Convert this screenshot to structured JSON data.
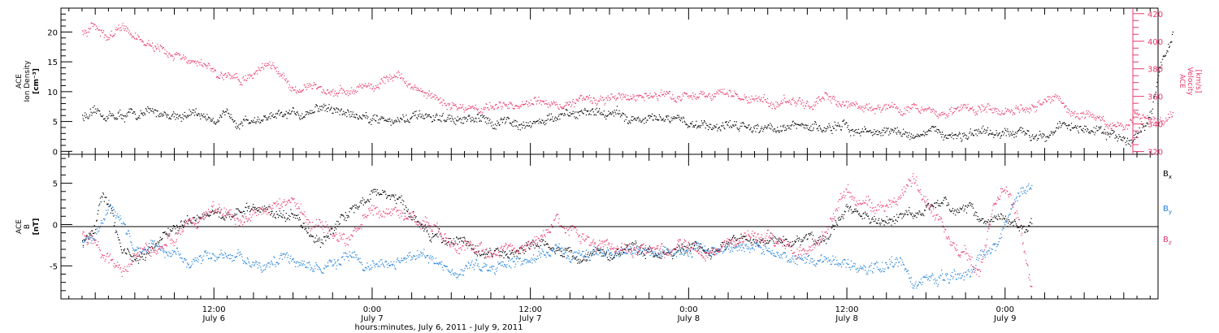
{
  "chart_data": [
    {
      "type": "scatter",
      "panel": "density-velocity",
      "ylabel_left": [
        "ACE",
        "Ion Density",
        "[cm⁻³]"
      ],
      "ylabel_right": [
        "ACE",
        "Velocity",
        "[km/s]"
      ],
      "ylim_left": [
        -0.5,
        24
      ],
      "ylim_right": [
        318,
        424
      ],
      "yticks_left": [
        0,
        5,
        10,
        15,
        20
      ],
      "yticks_right": [
        320,
        340,
        360,
        380,
        400,
        420
      ],
      "series": [
        {
          "axis": "left",
          "color": "#000000",
          "x": [
            0,
            3,
            6,
            9,
            12,
            15,
            18,
            21,
            24,
            27,
            30,
            33,
            36,
            39,
            42,
            45,
            48,
            51,
            54,
            57,
            60,
            63,
            66,
            69,
            72,
            75,
            78,
            79,
            80,
            81,
            82,
            82.7
          ],
          "y": [
            6,
            6,
            6.5,
            6,
            5.5,
            5.5,
            7.5,
            6,
            5.5,
            5.5,
            5,
            5,
            5.5,
            7,
            5.5,
            5,
            4.5,
            4.5,
            4,
            4,
            3.5,
            3,
            3,
            2.5,
            3,
            4.5,
            2.5,
            2,
            3,
            6,
            16,
            20
          ]
        },
        {
          "axis": "right",
          "color": "#e8386b",
          "x": [
            0,
            1,
            2,
            3,
            5,
            6,
            8,
            10,
            12,
            13,
            14,
            15,
            16,
            18,
            20,
            22,
            24,
            26,
            27,
            28,
            30,
            33,
            36,
            39,
            42,
            45,
            48,
            51,
            54,
            57,
            60,
            63,
            66,
            69,
            72,
            74,
            75,
            76,
            78,
            79,
            80,
            81,
            82,
            82.7
          ],
          "y": [
            405,
            410,
            402,
            410,
            397,
            392,
            385,
            378,
            371,
            378,
            385,
            376,
            368,
            365,
            364,
            368,
            375,
            361,
            358,
            353,
            352,
            354,
            356,
            358,
            360,
            361,
            362,
            358,
            356,
            356,
            352,
            352,
            349,
            352,
            351,
            360,
            347,
            349,
            340,
            338,
            348,
            342,
            341,
            346
          ]
        }
      ]
    },
    {
      "type": "scatter",
      "panel": "magnetic-field",
      "ylabel": [
        "ACE",
        "B",
        "[nT]"
      ],
      "ylim": [
        -9,
        8.5
      ],
      "yticks": [
        -5,
        0,
        5
      ],
      "xlabel": "hours:minutes, July  6, 2011 - July  9, 2011",
      "xtick_labels": [
        {
          "at": 10,
          "time": "12:00",
          "date": "July 6"
        },
        {
          "at": 22,
          "time": "0:00",
          "date": "July 7"
        },
        {
          "at": 34,
          "time": "12:00",
          "date": "July 7"
        },
        {
          "at": 46,
          "time": "0:00",
          "date": "July 8"
        },
        {
          "at": 58,
          "time": "12:00",
          "date": "July 8"
        },
        {
          "at": 70,
          "time": "0:00",
          "date": "July 9"
        }
      ],
      "xlim": [
        -1.6,
        81.6
      ],
      "legend": [
        "B",
        "B",
        "B"
      ],
      "legend_sub": [
        "x",
        "y",
        "z"
      ],
      "series": [
        {
          "name": "Bx",
          "color": "#000000",
          "x": [
            0,
            1,
            1.5,
            2,
            3,
            4,
            6,
            8,
            10,
            12,
            14,
            16,
            18,
            20,
            22,
            24,
            26,
            28,
            30,
            32,
            34,
            36,
            38,
            40,
            42,
            44,
            46,
            48,
            50,
            52,
            54,
            56,
            58,
            60,
            62,
            64,
            66,
            68,
            70,
            71,
            72
          ],
          "y": [
            -2,
            0,
            4,
            2,
            -3,
            -4,
            -2,
            1,
            2,
            1.5,
            2,
            1,
            -2,
            1,
            4,
            2.5,
            -1,
            -2,
            -3,
            -4,
            -2,
            -3,
            -4,
            -3,
            -3,
            -3,
            -2.5,
            -3,
            -2,
            -2,
            -2,
            -2,
            2,
            0,
            1,
            2,
            2,
            1,
            1,
            0,
            0
          ]
        },
        {
          "name": "By",
          "color": "#1e7fd9",
          "x": [
            0,
            1,
            2,
            3,
            4,
            6,
            8,
            10,
            12,
            14,
            16,
            18,
            20,
            22,
            24,
            26,
            28,
            30,
            32,
            34,
            36,
            38,
            40,
            42,
            44,
            46,
            48,
            50,
            52,
            54,
            56,
            58,
            60,
            62,
            63,
            64,
            66,
            67,
            68,
            69,
            70,
            71,
            72
          ],
          "y": [
            -2,
            -1,
            2,
            0,
            -3,
            -3,
            -4,
            -4,
            -4,
            -5,
            -4,
            -5,
            -4,
            -5,
            -4,
            -4,
            -5,
            -5,
            -5,
            -4,
            -3,
            -4,
            -3,
            -3,
            -3,
            -3,
            -3,
            -3,
            -3,
            -4,
            -4,
            -5,
            -5,
            -4,
            -7,
            -7,
            -7,
            -6,
            -4,
            -3,
            0,
            4,
            5
          ]
        },
        {
          "name": "Bz",
          "color": "#e8386b",
          "x": [
            0,
            1,
            2,
            3,
            4,
            6,
            8,
            10,
            12,
            14,
            16,
            18,
            20,
            22,
            24,
            26,
            28,
            30,
            32,
            34,
            36,
            38,
            40,
            42,
            44,
            46,
            48,
            50,
            52,
            54,
            56,
            57,
            58,
            60,
            62,
            63,
            64,
            66,
            67,
            68,
            69,
            70,
            71,
            72
          ],
          "y": [
            -1,
            -2,
            -4,
            -6,
            -3,
            -3,
            0,
            2,
            1,
            2,
            3,
            0,
            -2,
            2,
            1,
            0,
            -2,
            -3,
            -3,
            -2,
            0,
            -2,
            -3,
            -3,
            -3,
            -3,
            -3,
            -2,
            -1,
            -3,
            -2,
            1,
            4,
            2,
            3,
            5,
            3,
            -2,
            -3,
            -6,
            2,
            5,
            1,
            -8
          ]
        }
      ]
    }
  ]
}
